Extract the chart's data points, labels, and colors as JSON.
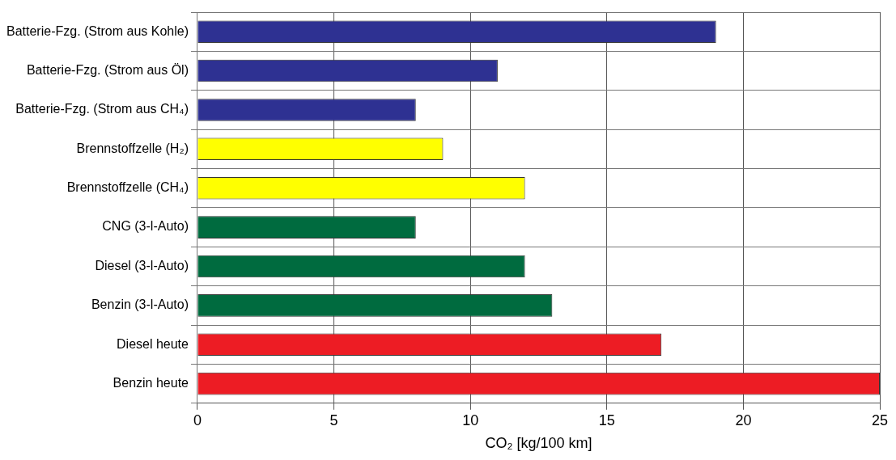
{
  "chart_data": {
    "type": "bar",
    "orientation": "horizontal",
    "categories": [
      "Batterie-Fzg. (Strom aus Kohle)",
      "Batterie-Fzg. (Strom aus Öl)",
      "Batterie-Fzg. (Strom aus CH₄)",
      "Brennstoffzelle (H₂)",
      "Brennstoffzelle (CH₄)",
      "CNG (3-l-Auto)",
      "Diesel (3-l-Auto)",
      "Benzin (3-l-Auto)",
      "Diesel heute",
      "Benzin heute"
    ],
    "values": [
      19,
      11,
      8,
      9,
      12,
      8,
      12,
      13,
      17,
      25
    ],
    "colors": [
      "#2e3192",
      "#2e3192",
      "#2e3192",
      "#ffff00",
      "#ffff00",
      "#006b3f",
      "#006b3f",
      "#006b3f",
      "#ed1c24",
      "#ed1c24"
    ],
    "xlabel": "CO₂ [kg/100 km]",
    "xlim": [
      0,
      25
    ],
    "xticks": [
      0,
      5,
      10,
      15,
      20,
      25
    ],
    "grid": true,
    "legend": false
  }
}
